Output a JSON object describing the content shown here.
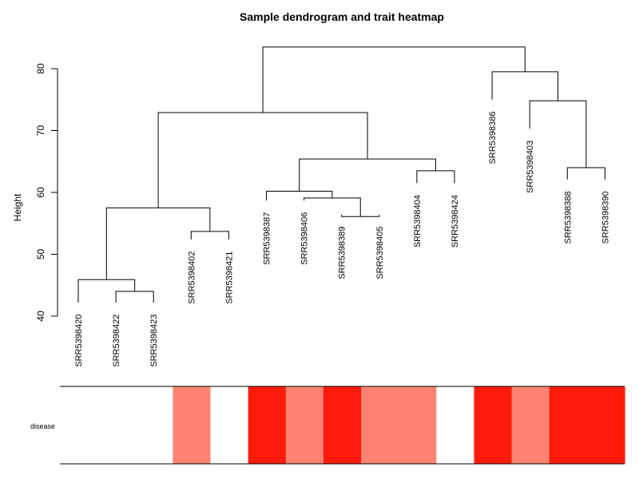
{
  "chart_data": {
    "type": "dendrogram-heatmap",
    "title": "Sample dendrogram and trait heatmap",
    "ylabel": "Height",
    "ylim": [
      40,
      85
    ],
    "yticks": [
      40,
      50,
      60,
      70,
      80
    ],
    "leaves": [
      "SRR5398420",
      "SRR5398422",
      "SRR5398423",
      "SRR5398402",
      "SRR5398421",
      "SRR5398387",
      "SRR5398406",
      "SRR5398389",
      "SRR5398405",
      "SRR5398404",
      "SRR5398424",
      "SRR5398386",
      "SRR5398403",
      "SRR5398388",
      "SRR5398390"
    ],
    "leaf_label_height": [
      40.3,
      40.3,
      40.3,
      50.5,
      50.5,
      56.8,
      56.8,
      54.5,
      54.5,
      59.6,
      59.6,
      73.1,
      68.4,
      60.2,
      60.2
    ],
    "merges": [
      {
        "left": 2,
        "right": 3,
        "height": 44.0
      },
      {
        "left": 1,
        "right": 16,
        "height": 45.9
      },
      {
        "left": 4,
        "right": 5,
        "height": 53.7
      },
      {
        "left": 17,
        "right": 18,
        "height": 57.5
      },
      {
        "left": 8,
        "right": 9,
        "height": 56.1
      },
      {
        "left": 7,
        "right": 20,
        "height": 59.1
      },
      {
        "left": 6,
        "right": 21,
        "height": 60.2
      },
      {
        "left": 10,
        "right": 11,
        "height": 63.5
      },
      {
        "left": 22,
        "right": 23,
        "height": 65.4
      },
      {
        "left": 19,
        "right": 24,
        "height": 72.9
      },
      {
        "left": 14,
        "right": 15,
        "height": 64.0
      },
      {
        "left": 13,
        "right": 26,
        "height": 74.8
      },
      {
        "left": 12,
        "right": 27,
        "height": 79.5
      },
      {
        "left": 25,
        "right": 28,
        "height": 83.5
      }
    ],
    "trait": {
      "label": "disease",
      "colors": [
        "#ffffff",
        "#ffffff",
        "#ffffff",
        "#ff8370",
        "#ffffff",
        "#ff1b0c",
        "#ff8370",
        "#ff1b0c",
        "#ff8370",
        "#ff8370",
        "#ffffff",
        "#ff1b0c",
        "#ff8370",
        "#ff1b0c",
        "#ff1b0c"
      ]
    }
  }
}
